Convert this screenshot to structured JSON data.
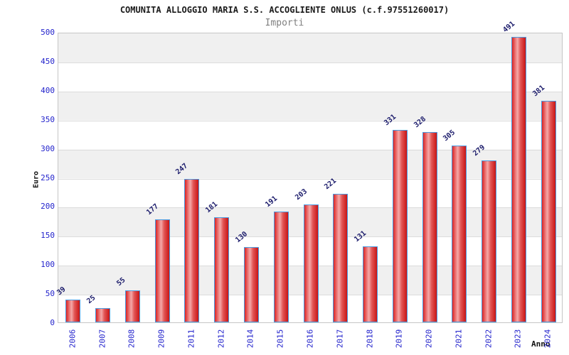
{
  "chart_data": {
    "type": "bar",
    "title": "COMUNITA ALLOGGIO MARIA S.S. ACCOGLIENTE ONLUS (c.f.97551260017)",
    "subtitle": "Importi",
    "xlabel": "Anno",
    "ylabel": "Euro",
    "categories": [
      "2006",
      "2007",
      "2008",
      "2009",
      "2011",
      "2012",
      "2014",
      "2015",
      "2016",
      "2017",
      "2018",
      "2019",
      "2020",
      "2021",
      "2022",
      "2023",
      "2024"
    ],
    "values": [
      39,
      25,
      55,
      177,
      247,
      181,
      130,
      191,
      203,
      221,
      131,
      331,
      328,
      305,
      279,
      491,
      381
    ],
    "ylim": [
      0,
      500
    ],
    "ytick_step": 50,
    "grid": true,
    "legend_position": "none",
    "colors": {
      "bar_fill_dark": "#d42020",
      "bar_fill_light": "#f4a8a8",
      "bar_border": "#4a9ae0",
      "axis_text": "#2323cc",
      "value_label": "#1b1b6b",
      "band": "#f0f0f0",
      "gridline": "#dcdcdc",
      "title_color": "#1a1a1a",
      "subtitle_color": "#808080"
    }
  }
}
